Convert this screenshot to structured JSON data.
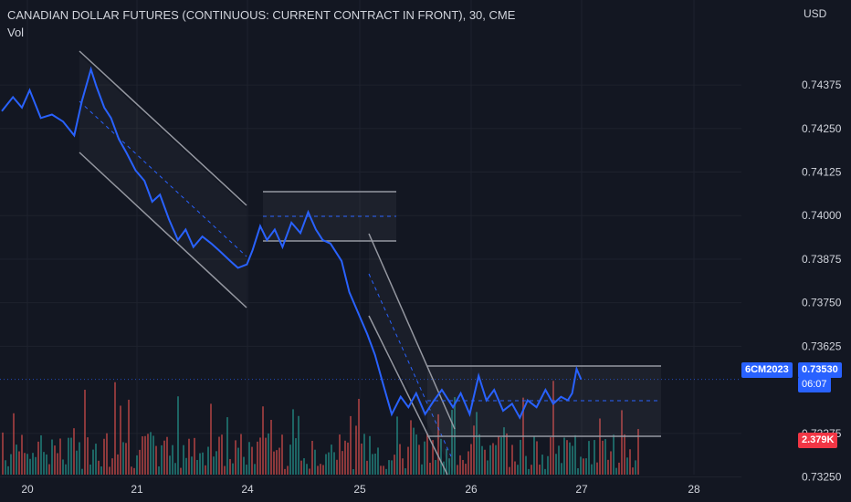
{
  "header": {
    "title": "CANADIAN DOLLAR FUTURES (CONTINUOUS: CURRENT CONTRACT IN FRONT), 30, CME",
    "volume_label": "Vol",
    "currency": "USD"
  },
  "tags": {
    "symbol": "6CM2023",
    "last_price": "0.73530",
    "countdown": "06:07",
    "volume_value": "2.379K"
  },
  "colors": {
    "background": "#131722",
    "price_line": "#2962ff",
    "channel": "#9598a1",
    "vol_up": "#26a69a",
    "vol_down": "#ef5350",
    "tag_blue": "#2962ff",
    "tag_red": "#f23645"
  },
  "chart_data": {
    "type": "line",
    "y_ticks": [
      "0.74375",
      "0.74250",
      "0.74125",
      "0.74000",
      "0.73875",
      "0.73750",
      "0.73625",
      "0.73375",
      "0.73250"
    ],
    "x_ticks": [
      "20",
      "21",
      "24",
      "25",
      "26",
      "27",
      "28"
    ],
    "ylim": [
      0.7322,
      0.7448
    ],
    "x_days": [
      0,
      1,
      2,
      3,
      4,
      5,
      6
    ],
    "last_price": 0.7353,
    "price": [
      [
        0.0,
        0.743
      ],
      [
        0.1,
        0.7434
      ],
      [
        0.18,
        0.7431
      ],
      [
        0.25,
        0.7436
      ],
      [
        0.35,
        0.7428
      ],
      [
        0.45,
        0.7429
      ],
      [
        0.55,
        0.7427
      ],
      [
        0.65,
        0.7423
      ],
      [
        0.72,
        0.7433
      ],
      [
        0.8,
        0.7442
      ],
      [
        0.85,
        0.7437
      ],
      [
        0.92,
        0.7431
      ],
      [
        0.98,
        0.7428
      ],
      [
        1.05,
        0.7422
      ],
      [
        1.12,
        0.7418
      ],
      [
        1.2,
        0.7413
      ],
      [
        1.28,
        0.741
      ],
      [
        1.35,
        0.7404
      ],
      [
        1.42,
        0.7406
      ],
      [
        1.5,
        0.7399
      ],
      [
        1.58,
        0.7393
      ],
      [
        1.65,
        0.7396
      ],
      [
        1.72,
        0.7391
      ],
      [
        1.8,
        0.7394
      ],
      [
        1.88,
        0.7392
      ],
      [
        1.95,
        0.739
      ],
      [
        2.05,
        0.7387
      ],
      [
        2.12,
        0.7385
      ],
      [
        2.2,
        0.7386
      ],
      [
        2.25,
        0.739
      ],
      [
        2.32,
        0.7397
      ],
      [
        2.38,
        0.7393
      ],
      [
        2.45,
        0.7396
      ],
      [
        2.52,
        0.7391
      ],
      [
        2.6,
        0.7398
      ],
      [
        2.68,
        0.7395
      ],
      [
        2.75,
        0.7401
      ],
      [
        2.82,
        0.7396
      ],
      [
        2.88,
        0.7393
      ],
      [
        2.95,
        0.7392
      ],
      [
        3.05,
        0.7387
      ],
      [
        3.12,
        0.7378
      ],
      [
        3.2,
        0.7372
      ],
      [
        3.28,
        0.7366
      ],
      [
        3.35,
        0.736
      ],
      [
        3.42,
        0.7352
      ],
      [
        3.5,
        0.7343
      ],
      [
        3.58,
        0.7348
      ],
      [
        3.65,
        0.7345
      ],
      [
        3.72,
        0.7349
      ],
      [
        3.8,
        0.7343
      ],
      [
        3.88,
        0.7347
      ],
      [
        3.95,
        0.735
      ],
      [
        4.05,
        0.7345
      ],
      [
        4.12,
        0.7349
      ],
      [
        4.2,
        0.7343
      ],
      [
        4.28,
        0.7354
      ],
      [
        4.35,
        0.7347
      ],
      [
        4.42,
        0.735
      ],
      [
        4.5,
        0.7344
      ],
      [
        4.58,
        0.7346
      ],
      [
        4.65,
        0.7342
      ],
      [
        4.72,
        0.7347
      ],
      [
        4.8,
        0.7345
      ],
      [
        4.88,
        0.735
      ],
      [
        4.95,
        0.7346
      ],
      [
        5.02,
        0.7348
      ],
      [
        5.08,
        0.7347
      ],
      [
        5.12,
        0.7349
      ],
      [
        5.16,
        0.7356
      ],
      [
        5.2,
        0.7353
      ]
    ],
    "series": [
      {
        "name": "6CM2023",
        "values": []
      }
    ]
  }
}
